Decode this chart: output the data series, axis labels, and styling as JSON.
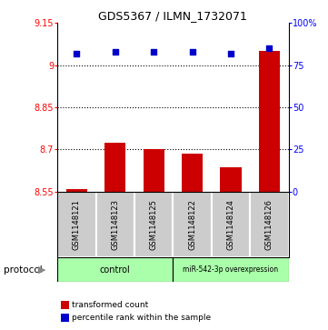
{
  "title": "GDS5367 / ILMN_1732071",
  "samples": [
    "GSM1148121",
    "GSM1148123",
    "GSM1148125",
    "GSM1148122",
    "GSM1148124",
    "GSM1148126"
  ],
  "bar_values": [
    8.558,
    8.722,
    8.7,
    8.685,
    8.637,
    9.05
  ],
  "dot_values": [
    82,
    83,
    83,
    83,
    82,
    85
  ],
  "ylim_left": [
    8.55,
    9.15
  ],
  "ylim_right": [
    0,
    100
  ],
  "yticks_left": [
    8.55,
    8.7,
    8.85,
    9.0,
    9.15
  ],
  "yticks_right": [
    0,
    25,
    50,
    75,
    100
  ],
  "ytick_labels_left": [
    "8.55",
    "8.7",
    "8.85",
    "9",
    "9.15"
  ],
  "ytick_labels_right": [
    "0",
    "25",
    "50",
    "75",
    "100%"
  ],
  "hlines": [
    8.7,
    8.85,
    9.0
  ],
  "bar_color": "#cc0000",
  "dot_color": "#0000cc",
  "control_label": "control",
  "mir_label": "miR-542-3p overexpression",
  "protocol_label": "protocol",
  "legend_bar_label": "transformed count",
  "legend_dot_label": "percentile rank within the sample",
  "bar_width": 0.55,
  "sample_box_color": "#cccccc",
  "group_color": "#aaffaa"
}
